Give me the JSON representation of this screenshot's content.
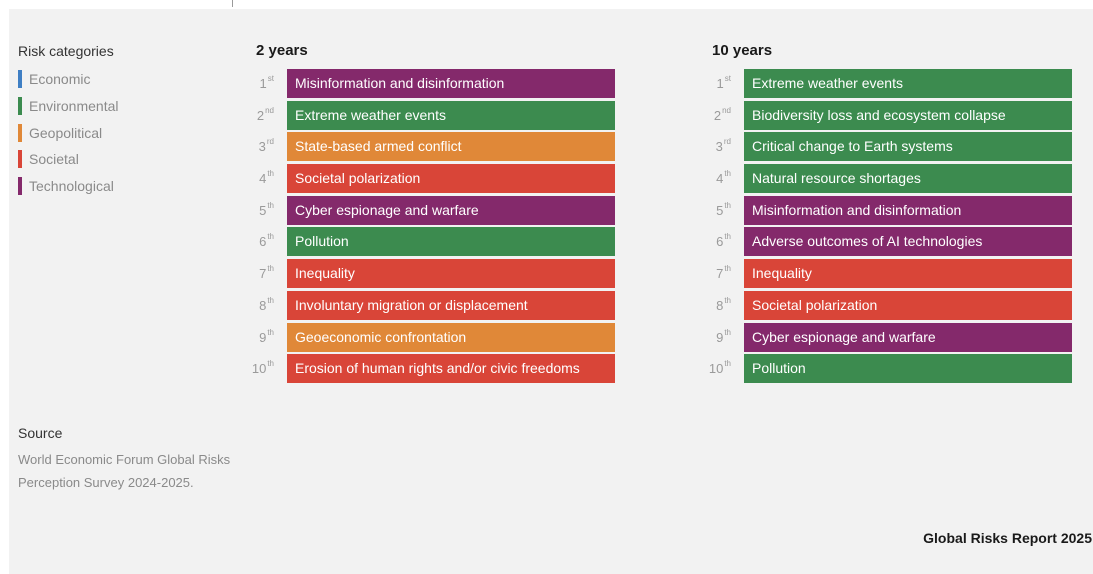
{
  "legend": {
    "title": "Risk categories",
    "items": [
      {
        "label": "Economic",
        "color": "#3f7fc4"
      },
      {
        "label": "Environmental",
        "color": "#3c8b4f"
      },
      {
        "label": "Geopolitical",
        "color": "#e08838"
      },
      {
        "label": "Societal",
        "color": "#d94538"
      },
      {
        "label": "Technological",
        "color": "#84296b"
      }
    ]
  },
  "chart_data": {
    "type": "table",
    "categories": {
      "Economic": "#3f7fc4",
      "Environmental": "#3c8b4f",
      "Geopolitical": "#e08838",
      "Societal": "#d94538",
      "Technological": "#84296b"
    },
    "columns": [
      {
        "title": "2 years",
        "rows": [
          {
            "rank": "1",
            "suffix": "st",
            "label": "Misinformation and disinformation",
            "category": "Technological"
          },
          {
            "rank": "2",
            "suffix": "nd",
            "label": "Extreme weather events",
            "category": "Environmental"
          },
          {
            "rank": "3",
            "suffix": "rd",
            "label": "State-based armed conflict",
            "category": "Geopolitical"
          },
          {
            "rank": "4",
            "suffix": "th",
            "label": "Societal polarization",
            "category": "Societal"
          },
          {
            "rank": "5",
            "suffix": "th",
            "label": "Cyber espionage and warfare",
            "category": "Technological"
          },
          {
            "rank": "6",
            "suffix": "th",
            "label": "Pollution",
            "category": "Environmental"
          },
          {
            "rank": "7",
            "suffix": "th",
            "label": "Inequality",
            "category": "Societal"
          },
          {
            "rank": "8",
            "suffix": "th",
            "label": "Involuntary migration or displacement",
            "category": "Societal"
          },
          {
            "rank": "9",
            "suffix": "th",
            "label": "Geoeconomic confrontation",
            "category": "Geopolitical"
          },
          {
            "rank": "10",
            "suffix": "th",
            "label": "Erosion of human rights and/or civic freedoms",
            "category": "Societal"
          }
        ]
      },
      {
        "title": "10 years",
        "rows": [
          {
            "rank": "1",
            "suffix": "st",
            "label": "Extreme weather events",
            "category": "Environmental"
          },
          {
            "rank": "2",
            "suffix": "nd",
            "label": "Biodiversity loss and ecosystem collapse",
            "category": "Environmental"
          },
          {
            "rank": "3",
            "suffix": "rd",
            "label": "Critical change to Earth systems",
            "category": "Environmental"
          },
          {
            "rank": "4",
            "suffix": "th",
            "label": "Natural resource shortages",
            "category": "Environmental"
          },
          {
            "rank": "5",
            "suffix": "th",
            "label": "Misinformation and disinformation",
            "category": "Technological"
          },
          {
            "rank": "6",
            "suffix": "th",
            "label": "Adverse outcomes of AI technologies",
            "category": "Technological"
          },
          {
            "rank": "7",
            "suffix": "th",
            "label": "Inequality",
            "category": "Societal"
          },
          {
            "rank": "8",
            "suffix": "th",
            "label": "Societal polarization",
            "category": "Societal"
          },
          {
            "rank": "9",
            "suffix": "th",
            "label": "Cyber espionage and warfare",
            "category": "Technological"
          },
          {
            "rank": "10",
            "suffix": "th",
            "label": "Pollution",
            "category": "Environmental"
          }
        ]
      }
    ]
  },
  "source": {
    "title": "Source",
    "text": "World Economic Forum Global Risks Perception Survey 2024-2025."
  },
  "footer": {
    "report_name": "Global Risks Report 2025"
  }
}
